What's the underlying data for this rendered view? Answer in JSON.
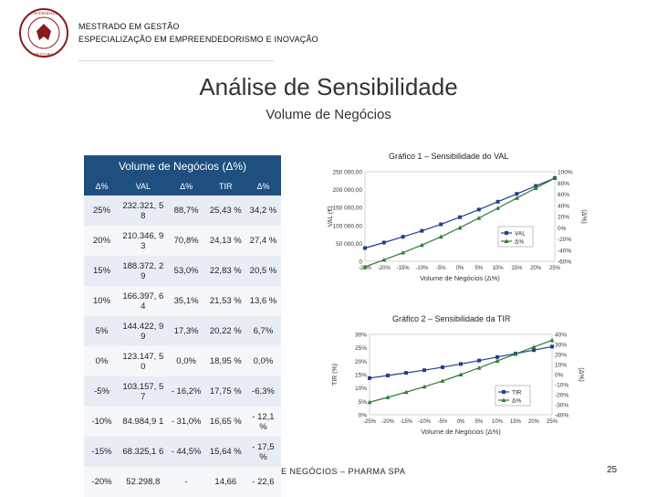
{
  "header": {
    "institution_seal_text": "UNIVERSIDADE DE ÉVORA",
    "line1": "MESTRADO EM GESTÃO",
    "line2": "ESPECIALIZAÇÃO EM EMPREENDEDORISMO E INOVAÇÃO"
  },
  "slide": {
    "title": "Análise de Sensibilidade",
    "subtitle": "Volume de Negócios",
    "footer": "E NEGÓCIOS – PHARMA SPA",
    "page_number": "25"
  },
  "table": {
    "title": "Volume de Negócios (Δ%)",
    "headers": [
      "Δ%",
      "VAL",
      "Δ%",
      "TIR",
      "Δ%"
    ],
    "rows": [
      [
        "25%",
        "232.321, 58",
        "88,7%",
        "25,43 %",
        "34,2 %"
      ],
      [
        "20%",
        "210.346, 93",
        "70,8%",
        "24,13 %",
        "27,4 %"
      ],
      [
        "15%",
        "188.372, 29",
        "53,0%",
        "22,83 %",
        "20,5 %"
      ],
      [
        "10%",
        "166.397, 64",
        "35,1%",
        "21,53 %",
        "13,6 %"
      ],
      [
        "5%",
        "144.422, 99",
        "17,3%",
        "20,22 %",
        "6,7%"
      ],
      [
        "0%",
        "123.147, 50",
        "0,0%",
        "18,95 %",
        "0,0%"
      ],
      [
        "-5%",
        "103.157, 57",
        "- 16,2%",
        "17,75 %",
        "-6,3%"
      ],
      [
        "-10%",
        "84.984,9 1",
        "- 31,0%",
        "16,65 %",
        "- 12,1 %"
      ],
      [
        "-15%",
        "68.325,1 6",
        "- 44,5%",
        "15,64 %",
        "- 17,5 %"
      ],
      [
        "-20%",
        "52.298,8",
        "-",
        "14,66",
        "- 22,6"
      ]
    ]
  },
  "chart_data": [
    {
      "type": "line",
      "caption": "Gráfico 1 – Sensibilidade do VAL",
      "xlabel": "Volume de Negócios (Δ%)",
      "ylabel_left": "VAL (€)",
      "ylabel_right": "(Δ%)",
      "x": [
        "-25%",
        "-20%",
        "-15%",
        "-10%",
        "-5%",
        "0%",
        "5%",
        "10%",
        "15%",
        "20%",
        "25%"
      ],
      "y_left_ticks": [
        "0",
        "50 000,00",
        "100 000,00",
        "150 000,00",
        "200 000,00",
        "250 000,00"
      ],
      "y_left_ylim": [
        0,
        250000
      ],
      "y_right_ticks": [
        "-60%",
        "-40%",
        "-20%",
        "0%",
        "20%",
        "40%",
        "60%",
        "80%",
        "100%"
      ],
      "y_right_ylim": [
        -60,
        100
      ],
      "series": [
        {
          "name": "VAL",
          "axis": "left",
          "color": "#1f3f8f",
          "marker": "square",
          "values": [
            37000,
            52298.8,
            68325.16,
            84984.91,
            103157.57,
            123147.5,
            144422.99,
            166397.64,
            188372.29,
            210346.93,
            232321.58
          ]
        },
        {
          "name": "Δ%",
          "axis": "right",
          "color": "#2e7d32",
          "marker": "triangle",
          "values": [
            -70,
            -57.5,
            -44.5,
            -31.0,
            -16.2,
            0.0,
            17.3,
            35.1,
            53.0,
            70.8,
            88.7
          ]
        }
      ],
      "legend": "bottom-right",
      "grid": false
    },
    {
      "type": "line",
      "caption": "Gráfico 2 – Sensibilidade da TIR",
      "xlabel": "Volume de Negócios (Δ%)",
      "ylabel_left": "TIR (%)",
      "ylabel_right": "(Δ%)",
      "x": [
        "-25%",
        "-20%",
        "-15%",
        "-10%",
        "-5%",
        "0%",
        "5%",
        "10%",
        "15%",
        "20%",
        "25%"
      ],
      "y_left_ticks": [
        "0%",
        "5%",
        "10%",
        "15%",
        "20%",
        "25%",
        "30%"
      ],
      "y_left_ylim": [
        0,
        30
      ],
      "y_right_ticks": [
        "-40%",
        "-30%",
        "-20%",
        "-10%",
        "0%",
        "10%",
        "20%",
        "30%",
        "40%"
      ],
      "y_right_ylim": [
        -40,
        40
      ],
      "series": [
        {
          "name": "TIR",
          "axis": "left",
          "color": "#1f3f8f",
          "marker": "square",
          "values": [
            13.7,
            14.66,
            15.64,
            16.65,
            17.75,
            18.95,
            20.22,
            21.53,
            22.83,
            24.13,
            25.43
          ]
        },
        {
          "name": "Δ%",
          "axis": "right",
          "color": "#2e7d32",
          "marker": "triangle",
          "values": [
            -27.5,
            -22.6,
            -17.5,
            -12.1,
            -6.3,
            0.0,
            6.7,
            13.6,
            20.5,
            27.4,
            34.2
          ]
        }
      ],
      "legend": "bottom-right",
      "grid": false
    }
  ]
}
